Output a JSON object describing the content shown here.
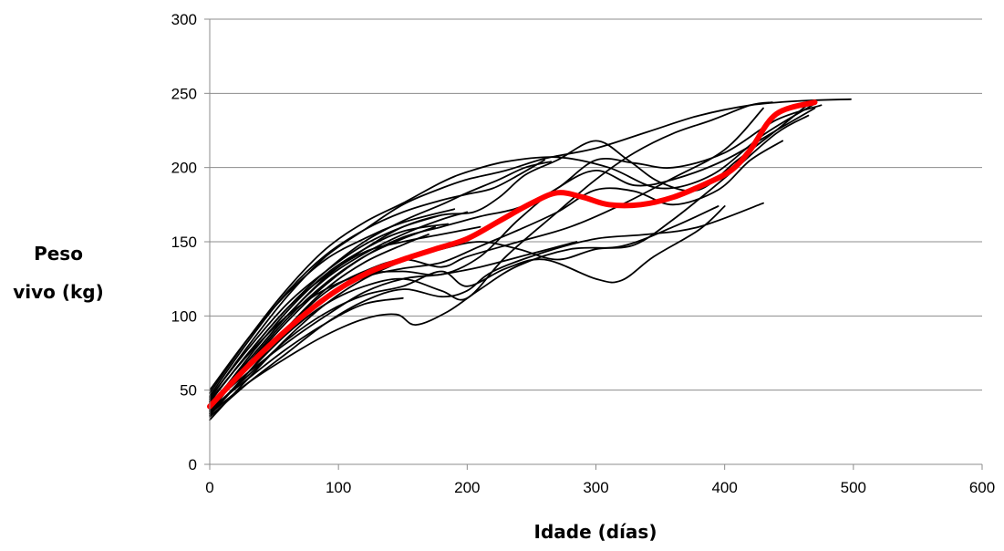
{
  "chart_data": {
    "type": "line",
    "title": "",
    "xlabel": "Idade (días)",
    "ylabel_lines": [
      "Peso",
      "vivo (kg)"
    ],
    "xlim": [
      0,
      600
    ],
    "ylim": [
      0,
      300
    ],
    "xticks": [
      0,
      100,
      200,
      300,
      400,
      500,
      600
    ],
    "yticks": [
      0,
      50,
      100,
      150,
      200,
      250,
      300
    ],
    "grid": "horizontal",
    "legend": "none",
    "colors": {
      "individual": "#000000",
      "mean": "#ff0000",
      "grid": "#8c8c8c"
    },
    "series": [
      {
        "values": [
          [
            0,
            40
          ],
          [
            30,
            70
          ],
          [
            60,
            100
          ],
          [
            90,
            125
          ],
          [
            120,
            142
          ],
          [
            150,
            155
          ],
          [
            180,
            165
          ],
          [
            200,
            170
          ]
        ]
      },
      {
        "values": [
          [
            0,
            35
          ],
          [
            30,
            68
          ],
          [
            60,
            98
          ],
          [
            90,
            122
          ],
          [
            120,
            140
          ],
          [
            150,
            152
          ],
          [
            175,
            160
          ]
        ]
      },
      {
        "values": [
          [
            0,
            45
          ],
          [
            30,
            78
          ],
          [
            60,
            108
          ],
          [
            90,
            130
          ],
          [
            120,
            148
          ],
          [
            150,
            160
          ],
          [
            180,
            168
          ]
        ]
      },
      {
        "values": [
          [
            0,
            38
          ],
          [
            30,
            72
          ],
          [
            60,
            103
          ],
          [
            90,
            128
          ],
          [
            120,
            145
          ],
          [
            150,
            157
          ],
          [
            185,
            162
          ]
        ]
      },
      {
        "values": [
          [
            0,
            50
          ],
          [
            30,
            85
          ],
          [
            60,
            115
          ],
          [
            90,
            138
          ],
          [
            120,
            152
          ],
          [
            150,
            163
          ],
          [
            190,
            172
          ]
        ]
      },
      {
        "values": [
          [
            0,
            42
          ],
          [
            30,
            75
          ],
          [
            60,
            105
          ],
          [
            90,
            127
          ],
          [
            120,
            143
          ],
          [
            150,
            150
          ],
          [
            180,
            155
          ],
          [
            210,
            160
          ]
        ]
      },
      {
        "values": [
          [
            0,
            33
          ],
          [
            30,
            62
          ],
          [
            60,
            92
          ],
          [
            90,
            118
          ],
          [
            120,
            136
          ],
          [
            150,
            148
          ],
          [
            170,
            155
          ]
        ]
      },
      {
        "values": [
          [
            0,
            37
          ],
          [
            30,
            58
          ],
          [
            60,
            78
          ],
          [
            90,
            95
          ],
          [
            120,
            108
          ],
          [
            150,
            112
          ]
        ]
      },
      {
        "values": [
          [
            0,
            34
          ],
          [
            30,
            55
          ],
          [
            60,
            72
          ],
          [
            90,
            87
          ],
          [
            120,
            98
          ],
          [
            145,
            101
          ],
          [
            160,
            94
          ],
          [
            185,
            103
          ],
          [
            210,
            118
          ],
          [
            240,
            134
          ],
          [
            280,
            145
          ],
          [
            320,
            147
          ],
          [
            360,
            160
          ],
          [
            395,
            174
          ]
        ]
      },
      {
        "values": [
          [
            0,
            40
          ],
          [
            30,
            62
          ],
          [
            60,
            82
          ],
          [
            90,
            100
          ],
          [
            120,
            116
          ],
          [
            150,
            125
          ],
          [
            180,
            128
          ],
          [
            210,
            133
          ],
          [
            250,
            142
          ],
          [
            285,
            150
          ]
        ]
      },
      {
        "values": [
          [
            0,
            36
          ],
          [
            30,
            60
          ],
          [
            60,
            84
          ],
          [
            90,
            102
          ],
          [
            120,
            114
          ],
          [
            150,
            120
          ],
          [
            180,
            130
          ],
          [
            200,
            120
          ],
          [
            230,
            132
          ],
          [
            260,
            138
          ],
          [
            300,
            125
          ],
          [
            320,
            124
          ],
          [
            345,
            140
          ],
          [
            380,
            158
          ],
          [
            400,
            174
          ]
        ]
      },
      {
        "values": [
          [
            0,
            32
          ],
          [
            30,
            55
          ],
          [
            60,
            75
          ],
          [
            90,
            95
          ],
          [
            120,
            110
          ],
          [
            150,
            118
          ],
          [
            180,
            113
          ],
          [
            200,
            117
          ],
          [
            220,
            130
          ],
          [
            260,
            143
          ],
          [
            300,
            152
          ],
          [
            340,
            155
          ],
          [
            380,
            160
          ],
          [
            430,
            176
          ]
        ]
      },
      {
        "values": [
          [
            0,
            38
          ],
          [
            30,
            66
          ],
          [
            60,
            92
          ],
          [
            90,
            116
          ],
          [
            120,
            130
          ],
          [
            150,
            138
          ],
          [
            180,
            133
          ],
          [
            200,
            140
          ],
          [
            240,
            150
          ],
          [
            280,
            160
          ],
          [
            320,
            175
          ],
          [
            360,
            193
          ],
          [
            400,
            212
          ],
          [
            430,
            240
          ]
        ]
      },
      {
        "values": [
          [
            0,
            34
          ],
          [
            30,
            62
          ],
          [
            60,
            88
          ],
          [
            90,
            108
          ],
          [
            120,
            120
          ],
          [
            150,
            125
          ],
          [
            180,
            117
          ],
          [
            200,
            112
          ],
          [
            230,
            140
          ],
          [
            270,
            170
          ],
          [
            300,
            192
          ],
          [
            330,
            210
          ],
          [
            360,
            223
          ],
          [
            390,
            232
          ],
          [
            420,
            242
          ],
          [
            437,
            244
          ]
        ]
      },
      {
        "values": [
          [
            0,
            44
          ],
          [
            30,
            80
          ],
          [
            60,
            113
          ],
          [
            90,
            140
          ],
          [
            120,
            158
          ],
          [
            150,
            175
          ],
          [
            180,
            186
          ],
          [
            200,
            192
          ],
          [
            230,
            198
          ],
          [
            260,
            206
          ],
          [
            300,
            213
          ],
          [
            340,
            224
          ],
          [
            380,
            235
          ],
          [
            420,
            242
          ],
          [
            460,
            245
          ],
          [
            498,
            246
          ]
        ]
      },
      {
        "values": [
          [
            0,
            48
          ],
          [
            30,
            85
          ],
          [
            60,
            118
          ],
          [
            90,
            145
          ],
          [
            120,
            163
          ],
          [
            150,
            176
          ],
          [
            180,
            190
          ],
          [
            200,
            197
          ],
          [
            230,
            204
          ],
          [
            270,
            207
          ],
          [
            310,
            200
          ],
          [
            350,
            186
          ],
          [
            390,
            195
          ],
          [
            430,
            222
          ],
          [
            470,
            243
          ]
        ]
      },
      {
        "values": [
          [
            0,
            42
          ],
          [
            30,
            75
          ],
          [
            60,
            105
          ],
          [
            90,
            130
          ],
          [
            120,
            150
          ],
          [
            150,
            164
          ],
          [
            180,
            175
          ],
          [
            200,
            183
          ],
          [
            225,
            192
          ],
          [
            245,
            200
          ],
          [
            265,
            204
          ]
        ]
      },
      {
        "values": [
          [
            0,
            46
          ],
          [
            30,
            83
          ],
          [
            60,
            116
          ],
          [
            90,
            141
          ],
          [
            120,
            158
          ],
          [
            150,
            170
          ],
          [
            180,
            178
          ],
          [
            200,
            182
          ],
          [
            220,
            186
          ],
          [
            240,
            195
          ],
          [
            260,
            205
          ]
        ]
      },
      {
        "values": [
          [
            0,
            39
          ],
          [
            30,
            70
          ],
          [
            60,
            100
          ],
          [
            90,
            126
          ],
          [
            120,
            145
          ],
          [
            150,
            160
          ],
          [
            180,
            168
          ],
          [
            205,
            170
          ],
          [
            225,
            180
          ],
          [
            245,
            195
          ],
          [
            270,
            205
          ],
          [
            300,
            218
          ],
          [
            325,
            205
          ],
          [
            350,
            190
          ],
          [
            380,
            185
          ],
          [
            410,
            205
          ],
          [
            440,
            225
          ],
          [
            468,
            245
          ]
        ]
      },
      {
        "values": [
          [
            0,
            36
          ],
          [
            30,
            67
          ],
          [
            60,
            96
          ],
          [
            90,
            121
          ],
          [
            120,
            140
          ],
          [
            150,
            153
          ],
          [
            180,
            160
          ],
          [
            210,
            167
          ],
          [
            240,
            173
          ],
          [
            270,
            186
          ],
          [
            300,
            205
          ],
          [
            330,
            203
          ],
          [
            360,
            200
          ],
          [
            400,
            210
          ],
          [
            440,
            232
          ],
          [
            475,
            242
          ]
        ]
      },
      {
        "values": [
          [
            0,
            30
          ],
          [
            30,
            58
          ],
          [
            60,
            85
          ],
          [
            90,
            108
          ],
          [
            120,
            125
          ],
          [
            150,
            137
          ],
          [
            180,
            145
          ],
          [
            210,
            150
          ],
          [
            240,
            145
          ],
          [
            270,
            138
          ],
          [
            300,
            145
          ],
          [
            330,
            148
          ],
          [
            360,
            165
          ],
          [
            400,
            193
          ],
          [
            440,
            223
          ],
          [
            465,
            235
          ]
        ]
      },
      {
        "values": [
          [
            0,
            43
          ],
          [
            30,
            74
          ],
          [
            60,
            100
          ],
          [
            90,
            118
          ],
          [
            120,
            128
          ],
          [
            150,
            130
          ],
          [
            180,
            128
          ],
          [
            210,
            140
          ],
          [
            240,
            165
          ],
          [
            270,
            186
          ],
          [
            300,
            198
          ],
          [
            330,
            188
          ],
          [
            360,
            192
          ],
          [
            400,
            205
          ],
          [
            440,
            225
          ],
          [
            470,
            240
          ]
        ]
      },
      {
        "values": [
          [
            0,
            41
          ],
          [
            30,
            68
          ],
          [
            60,
            92
          ],
          [
            90,
            112
          ],
          [
            120,
            126
          ],
          [
            150,
            132
          ],
          [
            180,
            136
          ],
          [
            210,
            147
          ],
          [
            240,
            158
          ],
          [
            270,
            170
          ],
          [
            300,
            185
          ],
          [
            330,
            184
          ],
          [
            360,
            175
          ],
          [
            395,
            185
          ],
          [
            420,
            205
          ],
          [
            445,
            218
          ]
        ]
      }
    ],
    "mean_series": {
      "values": [
        [
          0,
          39
        ],
        [
          25,
          62
        ],
        [
          50,
          83
        ],
        [
          75,
          102
        ],
        [
          100,
          118
        ],
        [
          125,
          130
        ],
        [
          150,
          138
        ],
        [
          175,
          145
        ],
        [
          200,
          152
        ],
        [
          225,
          164
        ],
        [
          250,
          176
        ],
        [
          270,
          183
        ],
        [
          290,
          180
        ],
        [
          310,
          175
        ],
        [
          335,
          175
        ],
        [
          360,
          180
        ],
        [
          385,
          189
        ],
        [
          405,
          198
        ],
        [
          420,
          212
        ],
        [
          440,
          236
        ],
        [
          470,
          244
        ]
      ]
    }
  }
}
